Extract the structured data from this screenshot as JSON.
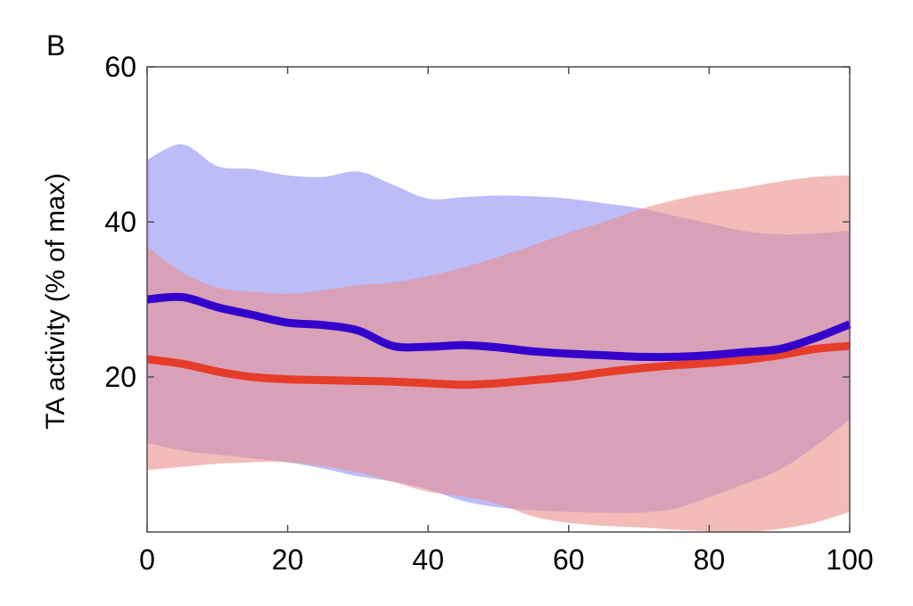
{
  "panel_label": "B",
  "chart_data": {
    "type": "line",
    "xlabel": "",
    "ylabel": "TA activity (% of max)",
    "xlim": [
      0,
      100
    ],
    "ylim": [
      0,
      60
    ],
    "xticks": [
      0,
      20,
      40,
      60,
      80,
      100
    ],
    "yticks": [
      20,
      40,
      60
    ],
    "x_tick_labels": [
      "0",
      "20",
      "40",
      "60",
      "80",
      "100"
    ],
    "y_tick_labels": [
      "20",
      "40",
      "60"
    ],
    "grid": false,
    "legend": "none",
    "series": [
      {
        "color": "#3300cc",
        "band_color": "#8f8ff5",
        "x": [
          0,
          5,
          10,
          15,
          20,
          25,
          30,
          35,
          40,
          45,
          50,
          55,
          60,
          65,
          70,
          75,
          80,
          85,
          90,
          95,
          100
        ],
        "mean": [
          30.0,
          30.3,
          29.0,
          28.0,
          27.0,
          26.7,
          26.0,
          24.0,
          23.9,
          24.1,
          23.8,
          23.3,
          23.0,
          22.8,
          22.6,
          22.6,
          22.8,
          23.2,
          23.6,
          25.0,
          26.8
        ],
        "upper": [
          48.0,
          50.0,
          47.2,
          46.8,
          46.0,
          45.8,
          46.5,
          44.8,
          43.0,
          43.2,
          43.4,
          43.3,
          43.0,
          42.4,
          41.8,
          40.8,
          39.8,
          38.8,
          38.4,
          38.5,
          38.9
        ],
        "lower": [
          11.5,
          10.5,
          10.0,
          9.5,
          9.0,
          8.2,
          7.2,
          6.5,
          5.5,
          4.0,
          3.2,
          2.8,
          2.6,
          2.5,
          2.5,
          3.0,
          4.5,
          6.2,
          8.0,
          11.0,
          14.5
        ]
      },
      {
        "color": "#e63c2a",
        "band_color": "#eb8f8a",
        "x": [
          0,
          5,
          10,
          15,
          20,
          25,
          30,
          35,
          40,
          45,
          50,
          55,
          60,
          65,
          70,
          75,
          80,
          85,
          90,
          95,
          100
        ],
        "mean": [
          22.3,
          21.7,
          20.7,
          20.0,
          19.7,
          19.6,
          19.5,
          19.4,
          19.2,
          19.0,
          19.2,
          19.6,
          20.0,
          20.6,
          21.1,
          21.5,
          21.8,
          22.2,
          22.8,
          23.6,
          24.0
        ],
        "upper": [
          36.8,
          33.5,
          31.5,
          31.0,
          30.7,
          31.2,
          31.8,
          32.2,
          33.0,
          34.1,
          35.5,
          37.0,
          38.6,
          40.0,
          41.6,
          42.8,
          43.7,
          44.4,
          45.2,
          45.8,
          46.0
        ],
        "lower": [
          8.0,
          8.4,
          8.8,
          9.0,
          9.0,
          8.5,
          7.7,
          6.5,
          5.2,
          4.6,
          3.6,
          2.0,
          1.2,
          0.8,
          0.6,
          0.3,
          0.1,
          0.0,
          0.4,
          1.2,
          2.6
        ]
      }
    ]
  }
}
